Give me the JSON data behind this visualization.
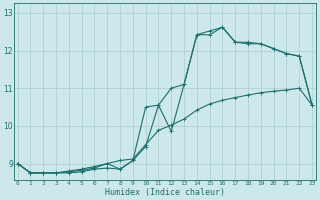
{
  "xlabel": "Humidex (Indice chaleur)",
  "bg_color": "#cce8ea",
  "grid_color": "#aaccce",
  "line_color": "#1e6e6e",
  "spine_color": "#1e6e6e",
  "xlim": [
    -0.3,
    23.3
  ],
  "ylim": [
    8.55,
    13.25
  ],
  "xticks": [
    0,
    1,
    2,
    3,
    4,
    5,
    6,
    7,
    8,
    9,
    10,
    11,
    12,
    13,
    14,
    15,
    16,
    17,
    18,
    19,
    20,
    21,
    22,
    23
  ],
  "yticks": [
    9,
    10,
    11,
    12,
    13
  ],
  "line1_x": [
    0,
    1,
    2,
    3,
    4,
    5,
    6,
    7,
    8,
    9,
    10,
    11,
    12,
    13,
    14,
    15,
    16,
    17,
    18,
    19,
    20,
    21,
    22,
    23
  ],
  "line1_y": [
    9.0,
    8.75,
    8.75,
    8.75,
    8.75,
    8.78,
    8.85,
    8.88,
    8.85,
    9.08,
    9.45,
    10.55,
    9.85,
    11.1,
    12.42,
    12.42,
    12.62,
    12.22,
    12.18,
    12.18,
    12.05,
    11.92,
    11.85,
    10.55
  ],
  "line2_x": [
    0,
    1,
    2,
    3,
    4,
    5,
    6,
    7,
    8,
    9,
    10,
    11,
    12,
    13,
    14,
    15,
    16,
    17,
    18,
    19,
    20,
    21,
    22,
    23
  ],
  "line2_y": [
    9.0,
    8.75,
    8.75,
    8.75,
    8.78,
    8.82,
    8.88,
    9.0,
    8.85,
    9.08,
    10.5,
    10.55,
    11.0,
    11.1,
    12.42,
    12.52,
    12.62,
    12.22,
    12.22,
    12.18,
    12.05,
    11.92,
    11.85,
    10.55
  ],
  "line3_x": [
    0,
    1,
    2,
    3,
    4,
    5,
    6,
    7,
    8,
    9,
    10,
    11,
    12,
    13,
    14,
    15,
    16,
    17,
    18,
    19,
    20,
    21,
    22,
    23
  ],
  "line3_y": [
    9.0,
    8.75,
    8.75,
    8.75,
    8.8,
    8.85,
    8.92,
    9.0,
    9.08,
    9.12,
    9.5,
    9.88,
    10.02,
    10.18,
    10.42,
    10.58,
    10.68,
    10.75,
    10.82,
    10.88,
    10.92,
    10.95,
    11.0,
    10.55
  ],
  "xlabel_fontsize": 6.0,
  "xtick_fontsize": 4.5,
  "ytick_fontsize": 5.5,
  "linewidth": 0.8,
  "markersize": 1.8
}
